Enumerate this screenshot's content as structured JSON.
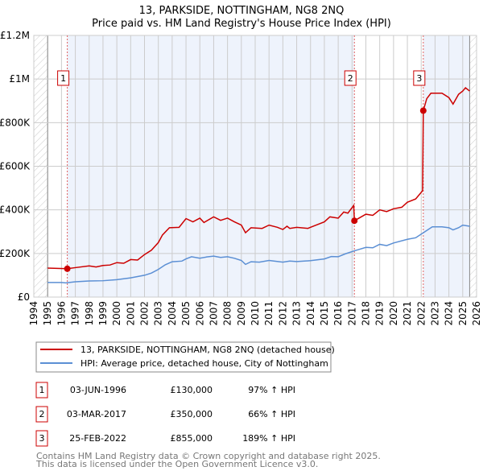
{
  "chart_data": {
    "type": "line",
    "title": "13, PARKSIDE, NOTTINGHAM, NG8 2NQ",
    "subtitle": "Price paid vs. HM Land Registry's House Price Index (HPI)",
    "xlim": [
      1994,
      2026
    ],
    "ylim": [
      0,
      1200000
    ],
    "x_ticks": [
      "1994",
      "1995",
      "1996",
      "1997",
      "1998",
      "1999",
      "2000",
      "2001",
      "2002",
      "2003",
      "2004",
      "2005",
      "2006",
      "2007",
      "2008",
      "2009",
      "2010",
      "2011",
      "2012",
      "2013",
      "2014",
      "2015",
      "2016",
      "2017",
      "2018",
      "2019",
      "2020",
      "2021",
      "2022",
      "2023",
      "2024",
      "2025",
      "2026"
    ],
    "y_ticks": [
      {
        "v": 0,
        "label": "£0"
      },
      {
        "v": 200000,
        "label": "£200K"
      },
      {
        "v": 400000,
        "label": "£400K"
      },
      {
        "v": 600000,
        "label": "£600K"
      },
      {
        "v": 800000,
        "label": "£800K"
      },
      {
        "v": 1000000,
        "label": "£1M"
      },
      {
        "v": 1200000,
        "label": "£1.2M"
      }
    ],
    "grid": true,
    "colors": {
      "property": "#cc0000",
      "hpi": "#5b8fd4",
      "shade": "#eef3fc"
    },
    "series": [
      {
        "name": "13, PARKSIDE, NOTTINGHAM, NG8 2NQ (detached house)",
        "key": "property",
        "points": [
          [
            1995,
            133000
          ],
          [
            1996.42,
            130000
          ],
          [
            1997,
            135000
          ],
          [
            1998,
            143000
          ],
          [
            1998.5,
            138000
          ],
          [
            1999,
            145000
          ],
          [
            1999.5,
            147000
          ],
          [
            2000,
            158000
          ],
          [
            2000.5,
            155000
          ],
          [
            2001,
            172000
          ],
          [
            2001.5,
            170000
          ],
          [
            2002,
            195000
          ],
          [
            2002.5,
            215000
          ],
          [
            2003,
            250000
          ],
          [
            2003.3,
            285000
          ],
          [
            2003.8,
            318000
          ],
          [
            2004.5,
            320000
          ],
          [
            2005,
            360000
          ],
          [
            2005.5,
            345000
          ],
          [
            2006,
            362000
          ],
          [
            2006.3,
            342000
          ],
          [
            2007,
            368000
          ],
          [
            2007.5,
            352000
          ],
          [
            2008,
            362000
          ],
          [
            2008.5,
            345000
          ],
          [
            2009,
            330000
          ],
          [
            2009.3,
            295000
          ],
          [
            2009.7,
            318000
          ],
          [
            2010.5,
            315000
          ],
          [
            2011,
            330000
          ],
          [
            2011.6,
            320000
          ],
          [
            2012,
            310000
          ],
          [
            2012.3,
            325000
          ],
          [
            2012.5,
            315000
          ],
          [
            2013,
            320000
          ],
          [
            2013.8,
            315000
          ],
          [
            2014,
            320000
          ],
          [
            2015,
            345000
          ],
          [
            2015.4,
            368000
          ],
          [
            2016,
            362000
          ],
          [
            2016.4,
            390000
          ],
          [
            2016.7,
            385000
          ],
          [
            2017.12,
            420000
          ],
          [
            2017.17,
            350000
          ],
          [
            2018,
            380000
          ],
          [
            2018.5,
            375000
          ],
          [
            2019,
            400000
          ],
          [
            2019.5,
            392000
          ],
          [
            2020,
            405000
          ],
          [
            2020.6,
            412000
          ],
          [
            2021,
            435000
          ],
          [
            2021.6,
            450000
          ],
          [
            2022.1,
            488000
          ],
          [
            2022.15,
            855000
          ],
          [
            2022.4,
            910000
          ],
          [
            2022.7,
            935000
          ],
          [
            2023.5,
            935000
          ],
          [
            2024,
            915000
          ],
          [
            2024.3,
            885000
          ],
          [
            2024.7,
            930000
          ],
          [
            2025,
            945000
          ],
          [
            2025.2,
            960000
          ],
          [
            2025.5,
            945000
          ]
        ]
      },
      {
        "name": "HPI: Average price, detached house, City of Nottingham",
        "key": "hpi",
        "points": [
          [
            1995,
            67000
          ],
          [
            1996,
            67000
          ],
          [
            1996.3,
            65000
          ],
          [
            1997,
            70000
          ],
          [
            1998,
            74000
          ],
          [
            1999,
            75000
          ],
          [
            2000,
            80000
          ],
          [
            2001,
            88000
          ],
          [
            2002,
            100000
          ],
          [
            2002.5,
            110000
          ],
          [
            2003,
            127000
          ],
          [
            2003.5,
            148000
          ],
          [
            2004,
            162000
          ],
          [
            2004.7,
            165000
          ],
          [
            2005,
            175000
          ],
          [
            2005.4,
            185000
          ],
          [
            2006,
            178000
          ],
          [
            2006.5,
            184000
          ],
          [
            2007,
            188000
          ],
          [
            2007.5,
            182000
          ],
          [
            2008,
            185000
          ],
          [
            2008.5,
            178000
          ],
          [
            2009,
            168000
          ],
          [
            2009.3,
            150000
          ],
          [
            2009.7,
            162000
          ],
          [
            2010.3,
            160000
          ],
          [
            2011,
            168000
          ],
          [
            2012,
            160000
          ],
          [
            2012.5,
            165000
          ],
          [
            2013,
            163000
          ],
          [
            2014,
            167000
          ],
          [
            2015,
            175000
          ],
          [
            2015.5,
            186000
          ],
          [
            2016,
            185000
          ],
          [
            2016.5,
            198000
          ],
          [
            2017.17,
            212000
          ],
          [
            2018,
            228000
          ],
          [
            2018.5,
            226000
          ],
          [
            2019,
            242000
          ],
          [
            2019.5,
            236000
          ],
          [
            2020,
            248000
          ],
          [
            2021,
            265000
          ],
          [
            2021.6,
            272000
          ],
          [
            2022.15,
            295000
          ],
          [
            2022.8,
            322000
          ],
          [
            2023.5,
            322000
          ],
          [
            2024,
            318000
          ],
          [
            2024.3,
            308000
          ],
          [
            2024.7,
            318000
          ],
          [
            2025,
            330000
          ],
          [
            2025.5,
            325000
          ]
        ]
      }
    ],
    "sales": [
      {
        "n": "1",
        "x": 1996.42,
        "y": 130000
      },
      {
        "n": "2",
        "x": 2017.17,
        "y": 350000
      },
      {
        "n": "3",
        "x": 2022.15,
        "y": 855000
      }
    ],
    "legend_placement": "below"
  },
  "legend": [
    {
      "label": "13, PARKSIDE, NOTTINGHAM, NG8 2NQ (detached house)"
    },
    {
      "label": "HPI: Average price, detached house, City of Nottingham"
    }
  ],
  "transactions": [
    {
      "n": "1",
      "date": "03-JUN-1996",
      "price": "£130,000",
      "hpi": "97% ↑ HPI"
    },
    {
      "n": "2",
      "date": "03-MAR-2017",
      "price": "£350,000",
      "hpi": "66% ↑ HPI"
    },
    {
      "n": "3",
      "date": "25-FEB-2022",
      "price": "£855,000",
      "hpi": "189% ↑ HPI"
    }
  ],
  "footer": {
    "line1": "Contains HM Land Registry data © Crown copyright and database right 2025.",
    "line2": "This data is licensed under the Open Government Licence v3.0."
  }
}
